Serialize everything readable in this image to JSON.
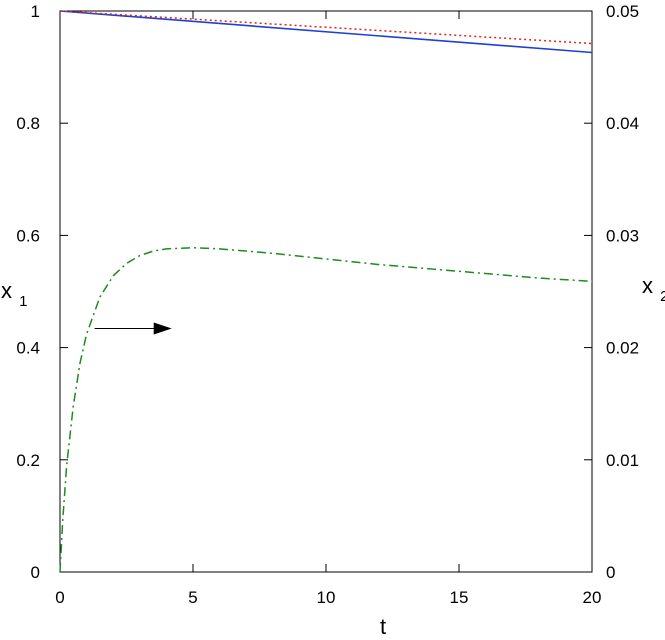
{
  "chart_data": {
    "type": "line",
    "x_axis": {
      "label": "t",
      "range": [
        0,
        20
      ],
      "ticks": [
        0,
        5,
        10,
        15,
        20
      ],
      "tick_labels": [
        "0",
        "5",
        "10",
        "15",
        "20"
      ]
    },
    "y_left": {
      "label": "x",
      "label_sub": "1",
      "range": [
        0,
        1
      ],
      "ticks": [
        0,
        0.2,
        0.4,
        0.6,
        0.8,
        1
      ],
      "tick_labels": [
        "0",
        "0.2",
        "0.4",
        "0.6",
        "0.8",
        "1"
      ]
    },
    "y_right": {
      "label": "x",
      "label_sub": "2",
      "range": [
        0,
        0.05
      ],
      "ticks": [
        0,
        0.01,
        0.02,
        0.03,
        0.04,
        0.05
      ],
      "tick_labels": [
        "0",
        "0.01",
        "0.02",
        "0.03",
        "0.04",
        "0.05"
      ]
    },
    "grid": false,
    "series": [
      {
        "axis": "left",
        "color": "#1f3fd6",
        "style": "solid",
        "x": [
          0,
          20
        ],
        "y": [
          1.0,
          0.926
        ]
      },
      {
        "axis": "left",
        "color": "#e0241b",
        "style": "dotted",
        "x": [
          0,
          20
        ],
        "y": [
          1.0,
          0.942
        ]
      },
      {
        "axis": "right",
        "color": "#1f8a1f",
        "style": "dash-dot",
        "x": [
          0,
          0.1,
          0.25,
          0.5,
          0.75,
          1.0,
          1.5,
          2.0,
          2.5,
          3.0,
          3.5,
          4.0,
          5.0,
          6.0,
          8.0,
          10.0,
          12.0,
          14.0,
          16.0,
          18.0,
          20.0
        ],
        "y": [
          0.0,
          0.0045,
          0.0095,
          0.0148,
          0.0186,
          0.0212,
          0.0245,
          0.0264,
          0.0275,
          0.0282,
          0.0286,
          0.0288,
          0.0289,
          0.0288,
          0.0284,
          0.0279,
          0.0274,
          0.027,
          0.0266,
          0.0262,
          0.0259
        ]
      }
    ],
    "annotation": {
      "type": "arrow",
      "direction": "right",
      "from": [
        1.3,
        0.0217
      ],
      "to": [
        4.2,
        0.0217
      ],
      "axis": "right"
    }
  }
}
